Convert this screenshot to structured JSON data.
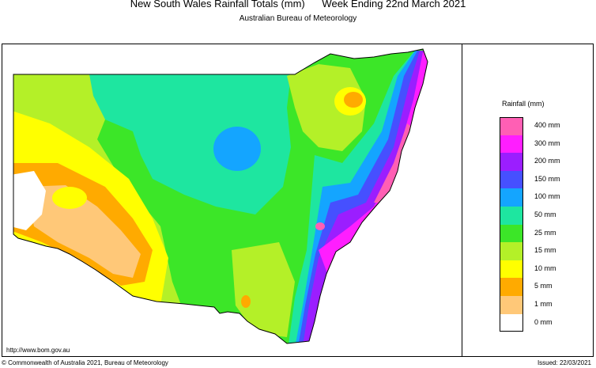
{
  "header": {
    "title": "New South Wales Rainfall Totals (mm)      Week Ending 22nd March 2021",
    "subtitle": "Australian Bureau of Meteorology"
  },
  "legend": {
    "title": "Rainfall (mm)",
    "items": [
      {
        "label": "400 mm",
        "color": "#ff5fb4"
      },
      {
        "label": "300 mm",
        "color": "#ff1eff"
      },
      {
        "label": "200 mm",
        "color": "#9b1eff"
      },
      {
        "label": "150 mm",
        "color": "#4650ff"
      },
      {
        "label": "100 mm",
        "color": "#14a5ff"
      },
      {
        "label": "50 mm",
        "color": "#1ee6a0"
      },
      {
        "label": "25 mm",
        "color": "#3ce628"
      },
      {
        "label": "15 mm",
        "color": "#b4f028"
      },
      {
        "label": "10 mm",
        "color": "#ffff00"
      },
      {
        "label": "5 mm",
        "color": "#ffaa00"
      },
      {
        "label": "1 mm",
        "color": "#ffc878"
      },
      {
        "label": "0 mm",
        "color": "#ffffff"
      }
    ]
  },
  "footer": {
    "url": "http://www.bom.gov.au",
    "copyright": "© Commonwealth of Australia 2021, Bureau of Meteorology",
    "issued": "Issued: 22/03/2021"
  }
}
